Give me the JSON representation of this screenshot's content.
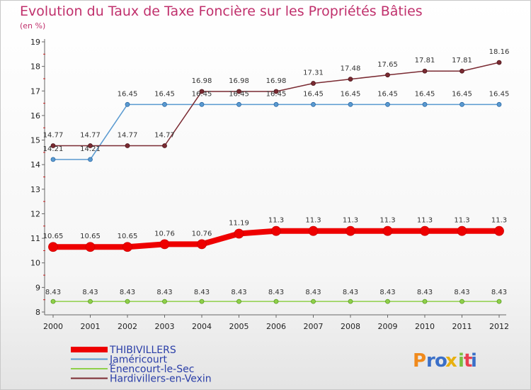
{
  "chart_data": {
    "type": "line",
    "title": "Evolution du Taux de Taxe Foncière sur les Propriétés Bâties",
    "subtitle": "(en %)",
    "xlabel": "",
    "ylabel": "",
    "x": [
      "2000",
      "2001",
      "2002",
      "2003",
      "2004",
      "2005",
      "2006",
      "2007",
      "2008",
      "2009",
      "2010",
      "2011",
      "2012"
    ],
    "ylim": [
      8,
      19
    ],
    "yticks": [
      8,
      9,
      10,
      11,
      12,
      13,
      14,
      15,
      16,
      17,
      18,
      19
    ],
    "grid": false,
    "legend_position": "bottom-left",
    "series": [
      {
        "name": "THIBIVILLERS",
        "color": "#ee0000",
        "values": [
          10.65,
          10.65,
          10.65,
          10.76,
          10.76,
          11.19,
          11.3,
          11.3,
          11.3,
          11.3,
          11.3,
          11.3,
          11.3
        ],
        "labels": [
          "10.65",
          "10.65",
          "10.65",
          "10.76",
          "10.76",
          "11.19",
          "11.3",
          "11.3",
          "11.3",
          "11.3",
          "11.3",
          "11.3",
          "11.3"
        ]
      },
      {
        "name": "Jaméricourt",
        "color": "#5a9ad0",
        "values": [
          14.21,
          14.21,
          16.45,
          16.45,
          16.45,
          16.45,
          16.45,
          16.45,
          16.45,
          16.45,
          16.45,
          16.45,
          16.45
        ],
        "labels": [
          "14.21",
          "14.21",
          "16.45",
          "16.45",
          "16.45",
          "16.45",
          "16.45",
          "16.45",
          "16.45",
          "16.45",
          "16.45",
          "16.45",
          "16.45"
        ]
      },
      {
        "name": "Énencourt-le-Sec",
        "color": "#8fd04a",
        "values": [
          8.43,
          8.43,
          8.43,
          8.43,
          8.43,
          8.43,
          8.43,
          8.43,
          8.43,
          8.43,
          8.43,
          8.43,
          8.43
        ],
        "labels": [
          "8.43",
          "8.43",
          "8.43",
          "8.43",
          "8.43",
          "8.43",
          "8.43",
          "8.43",
          "8.43",
          "8.43",
          "8.43",
          "8.43",
          "8.43"
        ]
      },
      {
        "name": "Hardivillers-en-Vexin",
        "color": "#7a2a32",
        "values": [
          14.77,
          14.77,
          14.77,
          14.77,
          16.98,
          16.98,
          16.98,
          17.31,
          17.48,
          17.65,
          17.81,
          17.81,
          18.16
        ],
        "labels": [
          "14.77",
          "14.77",
          "14.77",
          "14.77",
          "16.98",
          "16.98",
          "16.98",
          "17.31",
          "17.48",
          "17.65",
          "17.81",
          "17.81",
          "18.16"
        ]
      }
    ]
  },
  "logo": {
    "letters": [
      "P",
      "r",
      "o",
      "x",
      "i",
      "t",
      "i"
    ],
    "colors": [
      "#f08a1c",
      "#3a6fc8",
      "#3a6fc8",
      "#e8b010",
      "#7ac040",
      "#e84050",
      "#3a6fc8"
    ]
  }
}
